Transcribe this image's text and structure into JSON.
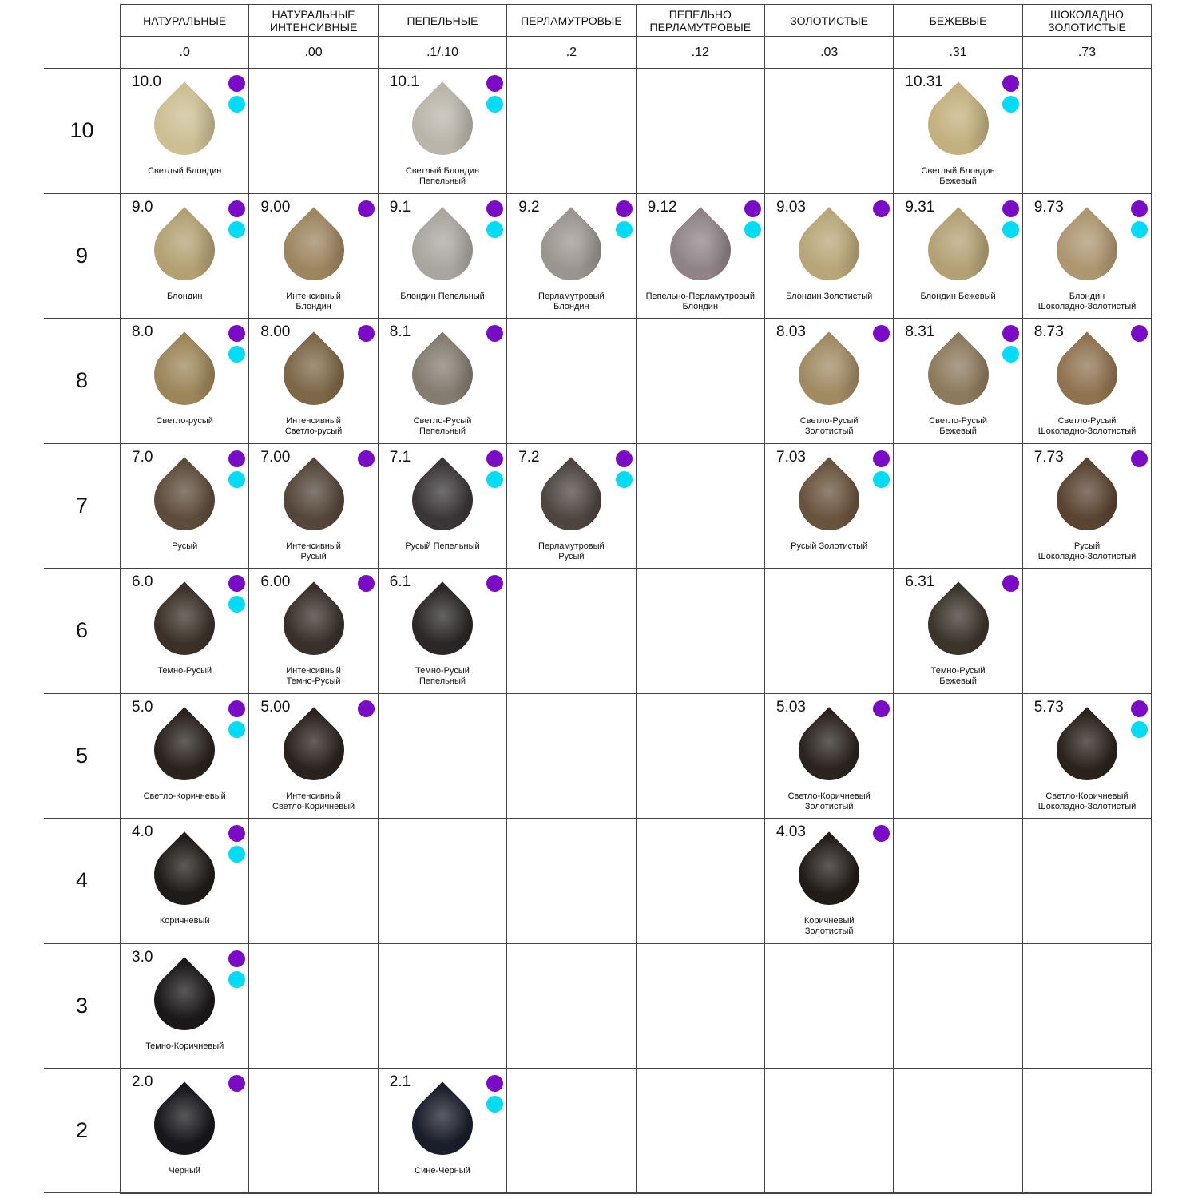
{
  "colors": {
    "purple": "#7a0cc8",
    "cyan": "#00dcf5"
  },
  "columns": [
    {
      "title": "НАТУРАЛЬНЫЕ",
      "code": ".0"
    },
    {
      "title": "НАТУРАЛЬНЫЕ\nИНТЕНСИВНЫЕ",
      "code": ".00"
    },
    {
      "title": "ПЕПЕЛЬНЫЕ",
      "code": ".1/.10"
    },
    {
      "title": "ПЕРЛАМУТРОВЫЕ",
      "code": ".2"
    },
    {
      "title": "ПЕПЕЛЬНО\nПЕРЛАМУТРОВЫЕ",
      "code": ".12"
    },
    {
      "title": "ЗОЛОТИСТЫЕ",
      "code": ".03"
    },
    {
      "title": "БЕЖЕВЫЕ",
      "code": ".31"
    },
    {
      "title": "ШОКОЛАДНО\nЗОЛОТИСТЫЕ",
      "code": ".73"
    }
  ],
  "rows": [
    {
      "level": "10",
      "cells": [
        {
          "code": "10.0",
          "name": "Светлый Блондин",
          "color": "#cbbf93",
          "dots": [
            "purple",
            "cyan"
          ]
        },
        null,
        {
          "code": "10.1",
          "name": "Светлый Блондин\nПепельный",
          "color": "#bab5aa",
          "dots": [
            "purple",
            "cyan"
          ]
        },
        null,
        null,
        null,
        {
          "code": "10.31",
          "name": "Светлый Блондин\nБежевый",
          "color": "#c3b07f",
          "dots": [
            "purple",
            "cyan"
          ]
        },
        null
      ]
    },
    {
      "level": "9",
      "cells": [
        {
          "code": "9.0",
          "name": "Блондин",
          "color": "#b3a173",
          "dots": [
            "purple",
            "cyan"
          ]
        },
        {
          "code": "9.00",
          "name": "Интенсивный\nБлондин",
          "color": "#9d8560",
          "dots": [
            "purple"
          ]
        },
        {
          "code": "9.1",
          "name": "Блондин Пепельный",
          "color": "#a9a69f",
          "dots": [
            "purple",
            "cyan"
          ]
        },
        {
          "code": "9.2",
          "name": "Перламутровый\nБлондин",
          "color": "#9b958f",
          "dots": [
            "purple",
            "cyan"
          ]
        },
        {
          "code": "9.12",
          "name": "Пепельно-Перламутровый\nБлондин",
          "color": "#8f8387",
          "dots": [
            "purple",
            "cyan"
          ]
        },
        {
          "code": "9.03",
          "name": "Блондин Золотистый",
          "color": "#b8a678",
          "dots": [
            "purple"
          ]
        },
        {
          "code": "9.31",
          "name": "Блондин Бежевый",
          "color": "#b3a175",
          "dots": [
            "purple",
            "cyan"
          ]
        },
        {
          "code": "9.73",
          "name": "Блондин\nШоколадно-Золотистый",
          "color": "#ad9670",
          "dots": [
            "purple",
            "cyan"
          ]
        }
      ]
    },
    {
      "level": "8",
      "cells": [
        {
          "code": "8.0",
          "name": "Светло-русый",
          "color": "#9c8659",
          "dots": [
            "purple",
            "cyan"
          ]
        },
        {
          "code": "8.00",
          "name": "Интенсивный\nСветло-русый",
          "color": "#7d6747",
          "dots": [
            "purple"
          ]
        },
        {
          "code": "8.1",
          "name": "Светло-Русый\nПепельный",
          "color": "#857c70",
          "dots": [
            "purple"
          ]
        },
        null,
        null,
        {
          "code": "8.03",
          "name": "Светло-Русый\nЗолотистый",
          "color": "#a08a62",
          "dots": [
            "purple"
          ]
        },
        {
          "code": "8.31",
          "name": "Светло-Русый\nБежевый",
          "color": "#8c7a5d",
          "dots": [
            "purple",
            "cyan"
          ]
        },
        {
          "code": "8.73",
          "name": "Светло-Русый\nШоколадно-Золотистый",
          "color": "#8f7350",
          "dots": [
            "purple"
          ]
        }
      ]
    },
    {
      "level": "7",
      "cells": [
        {
          "code": "7.0",
          "name": "Русый",
          "color": "#5d4c3b",
          "dots": [
            "purple",
            "cyan"
          ]
        },
        {
          "code": "7.00",
          "name": "Интенсивный\nРусый",
          "color": "#54463a",
          "dots": [
            "purple"
          ]
        },
        {
          "code": "7.1",
          "name": "Русый Пепельный",
          "color": "#3a3637",
          "dots": [
            "purple",
            "cyan"
          ]
        },
        {
          "code": "7.2",
          "name": "Перламутровый\nРусый",
          "color": "#4e4540",
          "dots": [
            "purple",
            "cyan"
          ]
        },
        null,
        {
          "code": "7.03",
          "name": "Русый Золотистый",
          "color": "#68533d",
          "dots": [
            "purple",
            "cyan"
          ]
        },
        null,
        {
          "code": "7.73",
          "name": "Русый\nШоколадно-Золотистый",
          "color": "#5a4431",
          "dots": [
            "purple"
          ]
        }
      ]
    },
    {
      "level": "6",
      "cells": [
        {
          "code": "6.0",
          "name": "Темно-Русый",
          "color": "#3b3128",
          "dots": [
            "purple",
            "cyan"
          ]
        },
        {
          "code": "6.00",
          "name": "Интенсивный\nТемно-Русый",
          "color": "#3a302a",
          "dots": [
            "purple"
          ]
        },
        {
          "code": "6.1",
          "name": "Темно-Русый\nПепельный",
          "color": "#2a2726",
          "dots": [
            "purple"
          ]
        },
        null,
        null,
        null,
        {
          "code": "6.31",
          "name": "Темно-Русый\nБежевый",
          "color": "#3b342b",
          "dots": [
            "purple"
          ]
        },
        null
      ]
    },
    {
      "level": "5",
      "cells": [
        {
          "code": "5.0",
          "name": "Светло-Коричневый",
          "color": "#29221e",
          "dots": [
            "purple",
            "cyan"
          ]
        },
        {
          "code": "5.00",
          "name": "Интенсивный\nСветло-Коричневый",
          "color": "#2a221e",
          "dots": [
            "purple"
          ]
        },
        null,
        null,
        null,
        {
          "code": "5.03",
          "name": "Светло-Коричневый\nЗолотистый",
          "color": "#2a231e",
          "dots": [
            "purple"
          ]
        },
        null,
        {
          "code": "5.73",
          "name": "Светло-Коричневый\nШоколадно-Золотистый",
          "color": "#2b221c",
          "dots": [
            "purple",
            "cyan"
          ]
        }
      ]
    },
    {
      "level": "4",
      "cells": [
        {
          "code": "4.0",
          "name": "Коричневый",
          "color": "#1f1b19",
          "dots": [
            "purple",
            "cyan"
          ]
        },
        null,
        null,
        null,
        null,
        {
          "code": "4.03",
          "name": "Коричневый\nЗолотистый",
          "color": "#221c19",
          "dots": [
            "purple"
          ]
        },
        null,
        null
      ]
    },
    {
      "level": "3",
      "cells": [
        {
          "code": "3.0",
          "name": "Темно-Коричневый",
          "color": "#1a1818",
          "dots": [
            "purple",
            "cyan"
          ]
        },
        null,
        null,
        null,
        null,
        null,
        null,
        null
      ]
    },
    {
      "level": "2",
      "cells": [
        {
          "code": "2.0",
          "name": "Черный",
          "color": "#17171b",
          "dots": [
            "purple"
          ]
        },
        null,
        {
          "code": "2.1",
          "name": "Сине-Черный",
          "color": "#1a1d2a",
          "dots": [
            "purple",
            "cyan"
          ]
        },
        null,
        null,
        null,
        null,
        null
      ]
    }
  ]
}
